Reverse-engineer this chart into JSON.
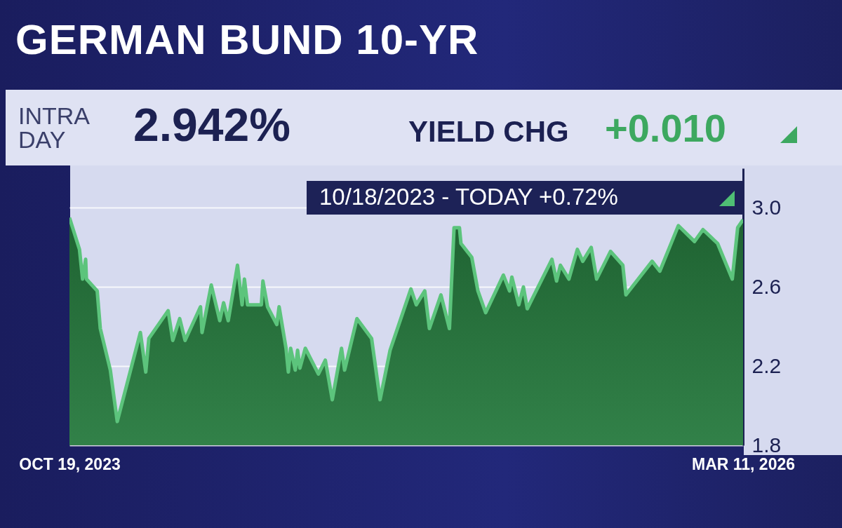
{
  "chart_data": {
    "type": "area",
    "title": "GERMAN BUND 10-YR",
    "annotations": [
      "INTRA DAY",
      "2.942%",
      "YIELD CHG",
      "+0.010",
      "10/18/2023 - TODAY +0.72%"
    ],
    "x": [
      "2023-10-19",
      "2023-11-01",
      "2023-11-05",
      "2023-11-09",
      "2023-11-10",
      "2023-11-24",
      "2023-11-28",
      "2023-12-11",
      "2023-12-20",
      "2024-01-19",
      "2024-01-26",
      "2024-01-30",
      "2024-02-24",
      "2024-03-01",
      "2024-03-10",
      "2024-03-17",
      "2024-04-06",
      "2024-04-08",
      "2024-04-20",
      "2024-05-01",
      "2024-05-06",
      "2024-05-12",
      "2024-05-24",
      "2024-05-30",
      "2024-06-02",
      "2024-06-06",
      "2024-06-24",
      "2024-06-26",
      "2024-07-02",
      "2024-07-14",
      "2024-07-17",
      "2024-07-26",
      "2024-07-29",
      "2024-08-01",
      "2024-08-07",
      "2024-08-10",
      "2024-08-13",
      "2024-08-20",
      "2024-09-06",
      "2024-09-15",
      "2024-09-24",
      "2024-10-06",
      "2024-10-10",
      "2024-10-26",
      "2024-11-14",
      "2024-11-25",
      "2024-12-08",
      "2025-01-04",
      "2025-01-11",
      "2025-01-22",
      "2025-01-28",
      "2025-02-12",
      "2025-02-23",
      "2025-03-01",
      "2025-03-08",
      "2025-03-10",
      "2025-03-24",
      "2025-04-01",
      "2025-04-11",
      "2025-05-04",
      "2025-05-12",
      "2025-05-15",
      "2025-05-24",
      "2025-05-30",
      "2025-06-04",
      "2025-07-06",
      "2025-07-12",
      "2025-07-17",
      "2025-07-28",
      "2025-08-08",
      "2025-08-15",
      "2025-08-26",
      "2025-09-02",
      "2025-09-20",
      "2025-10-06",
      "2025-10-10",
      "2025-11-13",
      "2025-11-23",
      "2025-12-17",
      "2026-01-07",
      "2026-01-18",
      "2026-02-06",
      "2026-02-25",
      "2026-03-04",
      "2026-03-11"
    ],
    "series": [
      {
        "color": "#5cc47c",
        "values": [
          2.95,
          2.79,
          2.64,
          2.74,
          2.64,
          2.58,
          2.39,
          2.18,
          1.92,
          2.37,
          2.17,
          2.34,
          2.48,
          2.33,
          2.44,
          2.33,
          2.5,
          2.37,
          2.61,
          2.43,
          2.52,
          2.43,
          2.71,
          2.51,
          2.64,
          2.51,
          2.51,
          2.63,
          2.5,
          2.41,
          2.5,
          2.29,
          2.17,
          2.29,
          2.18,
          2.28,
          2.19,
          2.29,
          2.16,
          2.23,
          2.03,
          2.29,
          2.18,
          2.44,
          2.34,
          2.03,
          2.28,
          2.59,
          2.51,
          2.58,
          2.39,
          2.56,
          2.39,
          2.9,
          2.9,
          2.82,
          2.75,
          2.58,
          2.47,
          2.66,
          2.58,
          2.65,
          2.51,
          2.6,
          2.49,
          2.74,
          2.63,
          2.71,
          2.64,
          2.79,
          2.73,
          2.8,
          2.64,
          2.78,
          2.71,
          2.56,
          2.73,
          2.68,
          2.91,
          2.83,
          2.89,
          2.82,
          2.64,
          2.9,
          2.94
        ]
      }
    ],
    "xlim": [
      "2023-10-19",
      "2026-03-11"
    ],
    "xticks": [
      {
        "value": "2023-10-19",
        "label": "OCT 19, 2023"
      },
      {
        "value": "2026-03-11",
        "label": "MAR 11, 2026"
      }
    ],
    "ylim": [
      1.8,
      3.2
    ],
    "yticks": [
      {
        "value": 1.8,
        "label": "1.8"
      },
      {
        "value": 2.2,
        "label": "2.2"
      },
      {
        "value": 2.6,
        "label": "2.6"
      },
      {
        "value": 3,
        "label": "3.0"
      }
    ],
    "grid": "y"
  }
}
